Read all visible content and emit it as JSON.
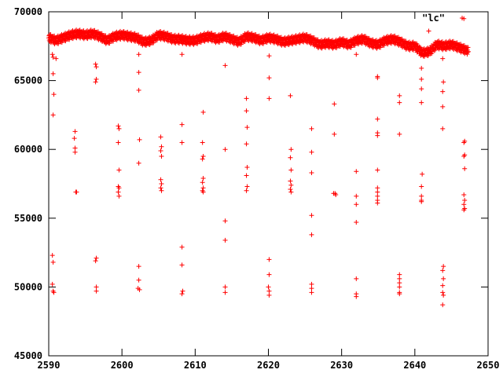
{
  "chart_data": {
    "type": "scatter",
    "title": "",
    "xlabel": "",
    "ylabel": "",
    "xlim": [
      2590,
      2650
    ],
    "ylim": [
      45000,
      70000
    ],
    "xticks": [
      "2590",
      "2600",
      "2610",
      "2620",
      "2630",
      "2640",
      "2650"
    ],
    "yticks": [
      "45000",
      "50000",
      "55000",
      "60000",
      "65000",
      "70000"
    ],
    "grid": false,
    "legend_position": "top-right",
    "marker": "+",
    "series": [
      {
        "name": "\"lc\"",
        "color": "#ff0000",
        "baseline": [
          [
            2590.0,
            68100
          ],
          [
            2591.0,
            67900
          ],
          [
            2592.0,
            68100
          ],
          [
            2593.0,
            68300
          ],
          [
            2594.0,
            68400
          ],
          [
            2595.0,
            68300
          ],
          [
            2596.0,
            68400
          ],
          [
            2597.0,
            68200
          ],
          [
            2598.0,
            67900
          ],
          [
            2599.0,
            68200
          ],
          [
            2600.0,
            68300
          ],
          [
            2601.0,
            68200
          ],
          [
            2602.0,
            68100
          ],
          [
            2603.0,
            67800
          ],
          [
            2604.0,
            67900
          ],
          [
            2605.0,
            68300
          ],
          [
            2606.0,
            68200
          ],
          [
            2607.0,
            68000
          ],
          [
            2608.0,
            68000
          ],
          [
            2609.0,
            67900
          ],
          [
            2610.0,
            67900
          ],
          [
            2611.0,
            68100
          ],
          [
            2612.0,
            68200
          ],
          [
            2613.0,
            68000
          ],
          [
            2614.0,
            68200
          ],
          [
            2615.0,
            68000
          ],
          [
            2616.0,
            67800
          ],
          [
            2617.0,
            68200
          ],
          [
            2618.0,
            68100
          ],
          [
            2619.0,
            67900
          ],
          [
            2620.0,
            68100
          ],
          [
            2621.0,
            68000
          ],
          [
            2622.0,
            67800
          ],
          [
            2623.0,
            67900
          ],
          [
            2624.0,
            68000
          ],
          [
            2625.0,
            68100
          ],
          [
            2626.0,
            67900
          ],
          [
            2627.0,
            67600
          ],
          [
            2628.0,
            67700
          ],
          [
            2629.0,
            67600
          ],
          [
            2630.0,
            67800
          ],
          [
            2631.0,
            67600
          ],
          [
            2632.0,
            67900
          ],
          [
            2633.0,
            68000
          ],
          [
            2634.0,
            67700
          ],
          [
            2635.0,
            67600
          ],
          [
            2636.0,
            67900
          ],
          [
            2637.0,
            68000
          ],
          [
            2638.0,
            67800
          ],
          [
            2639.0,
            67500
          ],
          [
            2640.0,
            67500
          ],
          [
            2641.0,
            67000
          ],
          [
            2642.0,
            67100
          ],
          [
            2643.0,
            67600
          ],
          [
            2644.0,
            67500
          ],
          [
            2645.0,
            67600
          ],
          [
            2646.0,
            67400
          ],
          [
            2647.0,
            67200
          ],
          [
            2647.3,
            67100
          ]
        ],
        "outliers": [
          [
            2590.5,
            66900
          ],
          [
            2590.6,
            66700
          ],
          [
            2590.6,
            65500
          ],
          [
            2590.7,
            64000
          ],
          [
            2590.6,
            62500
          ],
          [
            2590.5,
            52300
          ],
          [
            2590.6,
            51800
          ],
          [
            2590.5,
            50200
          ],
          [
            2590.6,
            49700
          ],
          [
            2590.7,
            49600
          ],
          [
            2591.0,
            66600
          ],
          [
            2593.6,
            61300
          ],
          [
            2593.5,
            60800
          ],
          [
            2593.6,
            60100
          ],
          [
            2593.6,
            59800
          ],
          [
            2593.7,
            56900
          ],
          [
            2593.8,
            56900
          ],
          [
            2596.4,
            66200
          ],
          [
            2596.5,
            66000
          ],
          [
            2596.5,
            65100
          ],
          [
            2596.4,
            64900
          ],
          [
            2596.5,
            52100
          ],
          [
            2596.4,
            51900
          ],
          [
            2596.5,
            50000
          ],
          [
            2596.5,
            49700
          ],
          [
            2599.5,
            61700
          ],
          [
            2599.6,
            61500
          ],
          [
            2599.5,
            60500
          ],
          [
            2599.6,
            58500
          ],
          [
            2599.5,
            57300
          ],
          [
            2599.6,
            57200
          ],
          [
            2599.5,
            56900
          ],
          [
            2599.6,
            56600
          ],
          [
            2602.3,
            66900
          ],
          [
            2602.3,
            65600
          ],
          [
            2602.3,
            64300
          ],
          [
            2602.4,
            60700
          ],
          [
            2602.3,
            59000
          ],
          [
            2602.3,
            51500
          ],
          [
            2602.3,
            50500
          ],
          [
            2602.2,
            49900
          ],
          [
            2602.4,
            49800
          ],
          [
            2605.3,
            60900
          ],
          [
            2605.4,
            60200
          ],
          [
            2605.3,
            59900
          ],
          [
            2605.4,
            59500
          ],
          [
            2605.3,
            57800
          ],
          [
            2605.4,
            57500
          ],
          [
            2605.3,
            57200
          ],
          [
            2605.4,
            57000
          ],
          [
            2608.2,
            66900
          ],
          [
            2608.2,
            61800
          ],
          [
            2608.2,
            60500
          ],
          [
            2608.2,
            52900
          ],
          [
            2608.2,
            51600
          ],
          [
            2608.3,
            49700
          ],
          [
            2608.2,
            49500
          ],
          [
            2611.1,
            62700
          ],
          [
            2611.0,
            60500
          ],
          [
            2611.1,
            59500
          ],
          [
            2611.0,
            59300
          ],
          [
            2611.1,
            57900
          ],
          [
            2611.0,
            57600
          ],
          [
            2611.1,
            57200
          ],
          [
            2611.0,
            57000
          ],
          [
            2611.1,
            56900
          ],
          [
            2614.1,
            66100
          ],
          [
            2614.1,
            60000
          ],
          [
            2614.1,
            54800
          ],
          [
            2614.1,
            53400
          ],
          [
            2614.1,
            50000
          ],
          [
            2614.1,
            49600
          ],
          [
            2617.0,
            63700
          ],
          [
            2617.0,
            62800
          ],
          [
            2617.1,
            61600
          ],
          [
            2617.0,
            60400
          ],
          [
            2617.1,
            58700
          ],
          [
            2617.0,
            58100
          ],
          [
            2617.1,
            57300
          ],
          [
            2617.0,
            57000
          ],
          [
            2620.1,
            66800
          ],
          [
            2620.1,
            65200
          ],
          [
            2620.1,
            63700
          ],
          [
            2620.1,
            52000
          ],
          [
            2620.1,
            50900
          ],
          [
            2620.0,
            50000
          ],
          [
            2620.1,
            49700
          ],
          [
            2620.1,
            49400
          ],
          [
            2623.0,
            63900
          ],
          [
            2623.1,
            60000
          ],
          [
            2623.0,
            59400
          ],
          [
            2623.1,
            58500
          ],
          [
            2623.0,
            57700
          ],
          [
            2623.1,
            57400
          ],
          [
            2623.0,
            57100
          ],
          [
            2623.1,
            56900
          ],
          [
            2625.9,
            61500
          ],
          [
            2625.9,
            59800
          ],
          [
            2625.9,
            58300
          ],
          [
            2625.9,
            55200
          ],
          [
            2625.9,
            53800
          ],
          [
            2625.9,
            50200
          ],
          [
            2625.9,
            49900
          ],
          [
            2625.9,
            49600
          ],
          [
            2629.0,
            63300
          ],
          [
            2629.0,
            61100
          ],
          [
            2628.9,
            56800
          ],
          [
            2629.1,
            56800
          ],
          [
            2629.2,
            56700
          ],
          [
            2632.0,
            66900
          ],
          [
            2632.0,
            58400
          ],
          [
            2632.0,
            56600
          ],
          [
            2632.0,
            56000
          ],
          [
            2632.0,
            54700
          ],
          [
            2632.0,
            50600
          ],
          [
            2632.0,
            49500
          ],
          [
            2632.0,
            49300
          ],
          [
            2634.9,
            65300
          ],
          [
            2634.9,
            65200
          ],
          [
            2634.9,
            62200
          ],
          [
            2634.9,
            61200
          ],
          [
            2634.9,
            61000
          ],
          [
            2634.9,
            58500
          ],
          [
            2634.9,
            57200
          ],
          [
            2634.9,
            56900
          ],
          [
            2634.9,
            56600
          ],
          [
            2634.9,
            56300
          ],
          [
            2634.9,
            56100
          ],
          [
            2637.9,
            63900
          ],
          [
            2637.9,
            63400
          ],
          [
            2637.9,
            61100
          ],
          [
            2637.9,
            50900
          ],
          [
            2637.9,
            50600
          ],
          [
            2637.9,
            50300
          ],
          [
            2637.9,
            50000
          ],
          [
            2637.9,
            49600
          ],
          [
            2637.9,
            49500
          ],
          [
            2640.9,
            66900
          ],
          [
            2640.9,
            65900
          ],
          [
            2640.9,
            65100
          ],
          [
            2640.9,
            64400
          ],
          [
            2640.9,
            63400
          ],
          [
            2641.0,
            58200
          ],
          [
            2640.9,
            57300
          ],
          [
            2640.9,
            56600
          ],
          [
            2640.9,
            56300
          ],
          [
            2640.9,
            56200
          ],
          [
            2641.9,
            68600
          ],
          [
            2643.8,
            66600
          ],
          [
            2643.9,
            64900
          ],
          [
            2643.8,
            64200
          ],
          [
            2643.8,
            63100
          ],
          [
            2643.8,
            61500
          ],
          [
            2643.9,
            51500
          ],
          [
            2643.8,
            51200
          ],
          [
            2643.9,
            50600
          ],
          [
            2643.8,
            50100
          ],
          [
            2643.8,
            49600
          ],
          [
            2643.9,
            49400
          ],
          [
            2643.8,
            48700
          ],
          [
            2646.7,
            69500
          ],
          [
            2646.8,
            60600
          ],
          [
            2646.7,
            60500
          ],
          [
            2646.8,
            59600
          ],
          [
            2646.7,
            59500
          ],
          [
            2646.8,
            58600
          ],
          [
            2646.7,
            56700
          ],
          [
            2646.8,
            56300
          ],
          [
            2646.7,
            56000
          ],
          [
            2646.8,
            55700
          ],
          [
            2646.7,
            55600
          ]
        ]
      }
    ]
  }
}
